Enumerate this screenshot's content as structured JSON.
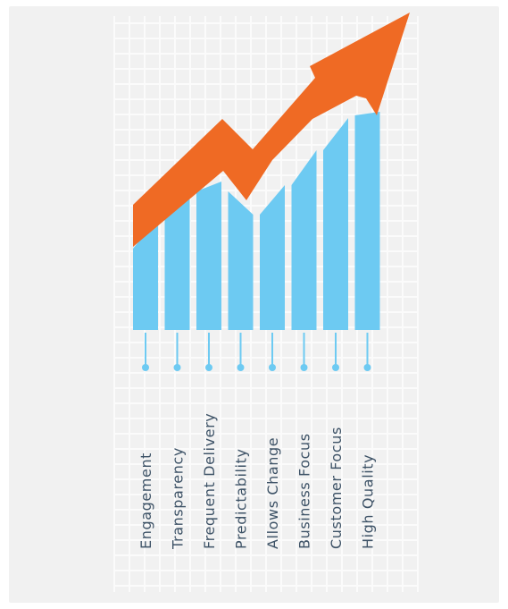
{
  "colors": {
    "panel": "#f1f1f1",
    "grid": "#fbfbfb",
    "bar": "#6dcaf2",
    "arrow": "#ef6a24",
    "label": "#3d5266"
  },
  "icons": {
    "arrow": "up-trend-arrow-icon"
  },
  "chart_data": {
    "type": "bar",
    "categories": [
      "Engagement",
      "Transparency",
      "Frequent Delivery",
      "Predictability",
      "Allows Change",
      "Business Focus",
      "Customer Focus",
      "High Quality"
    ],
    "values": [
      [
        278,
        244
      ],
      [
        244,
        214
      ],
      [
        214,
        203
      ],
      [
        214,
        240
      ],
      [
        240,
        207
      ],
      [
        207,
        168
      ],
      [
        168,
        132
      ],
      [
        129,
        125
      ]
    ]
  }
}
